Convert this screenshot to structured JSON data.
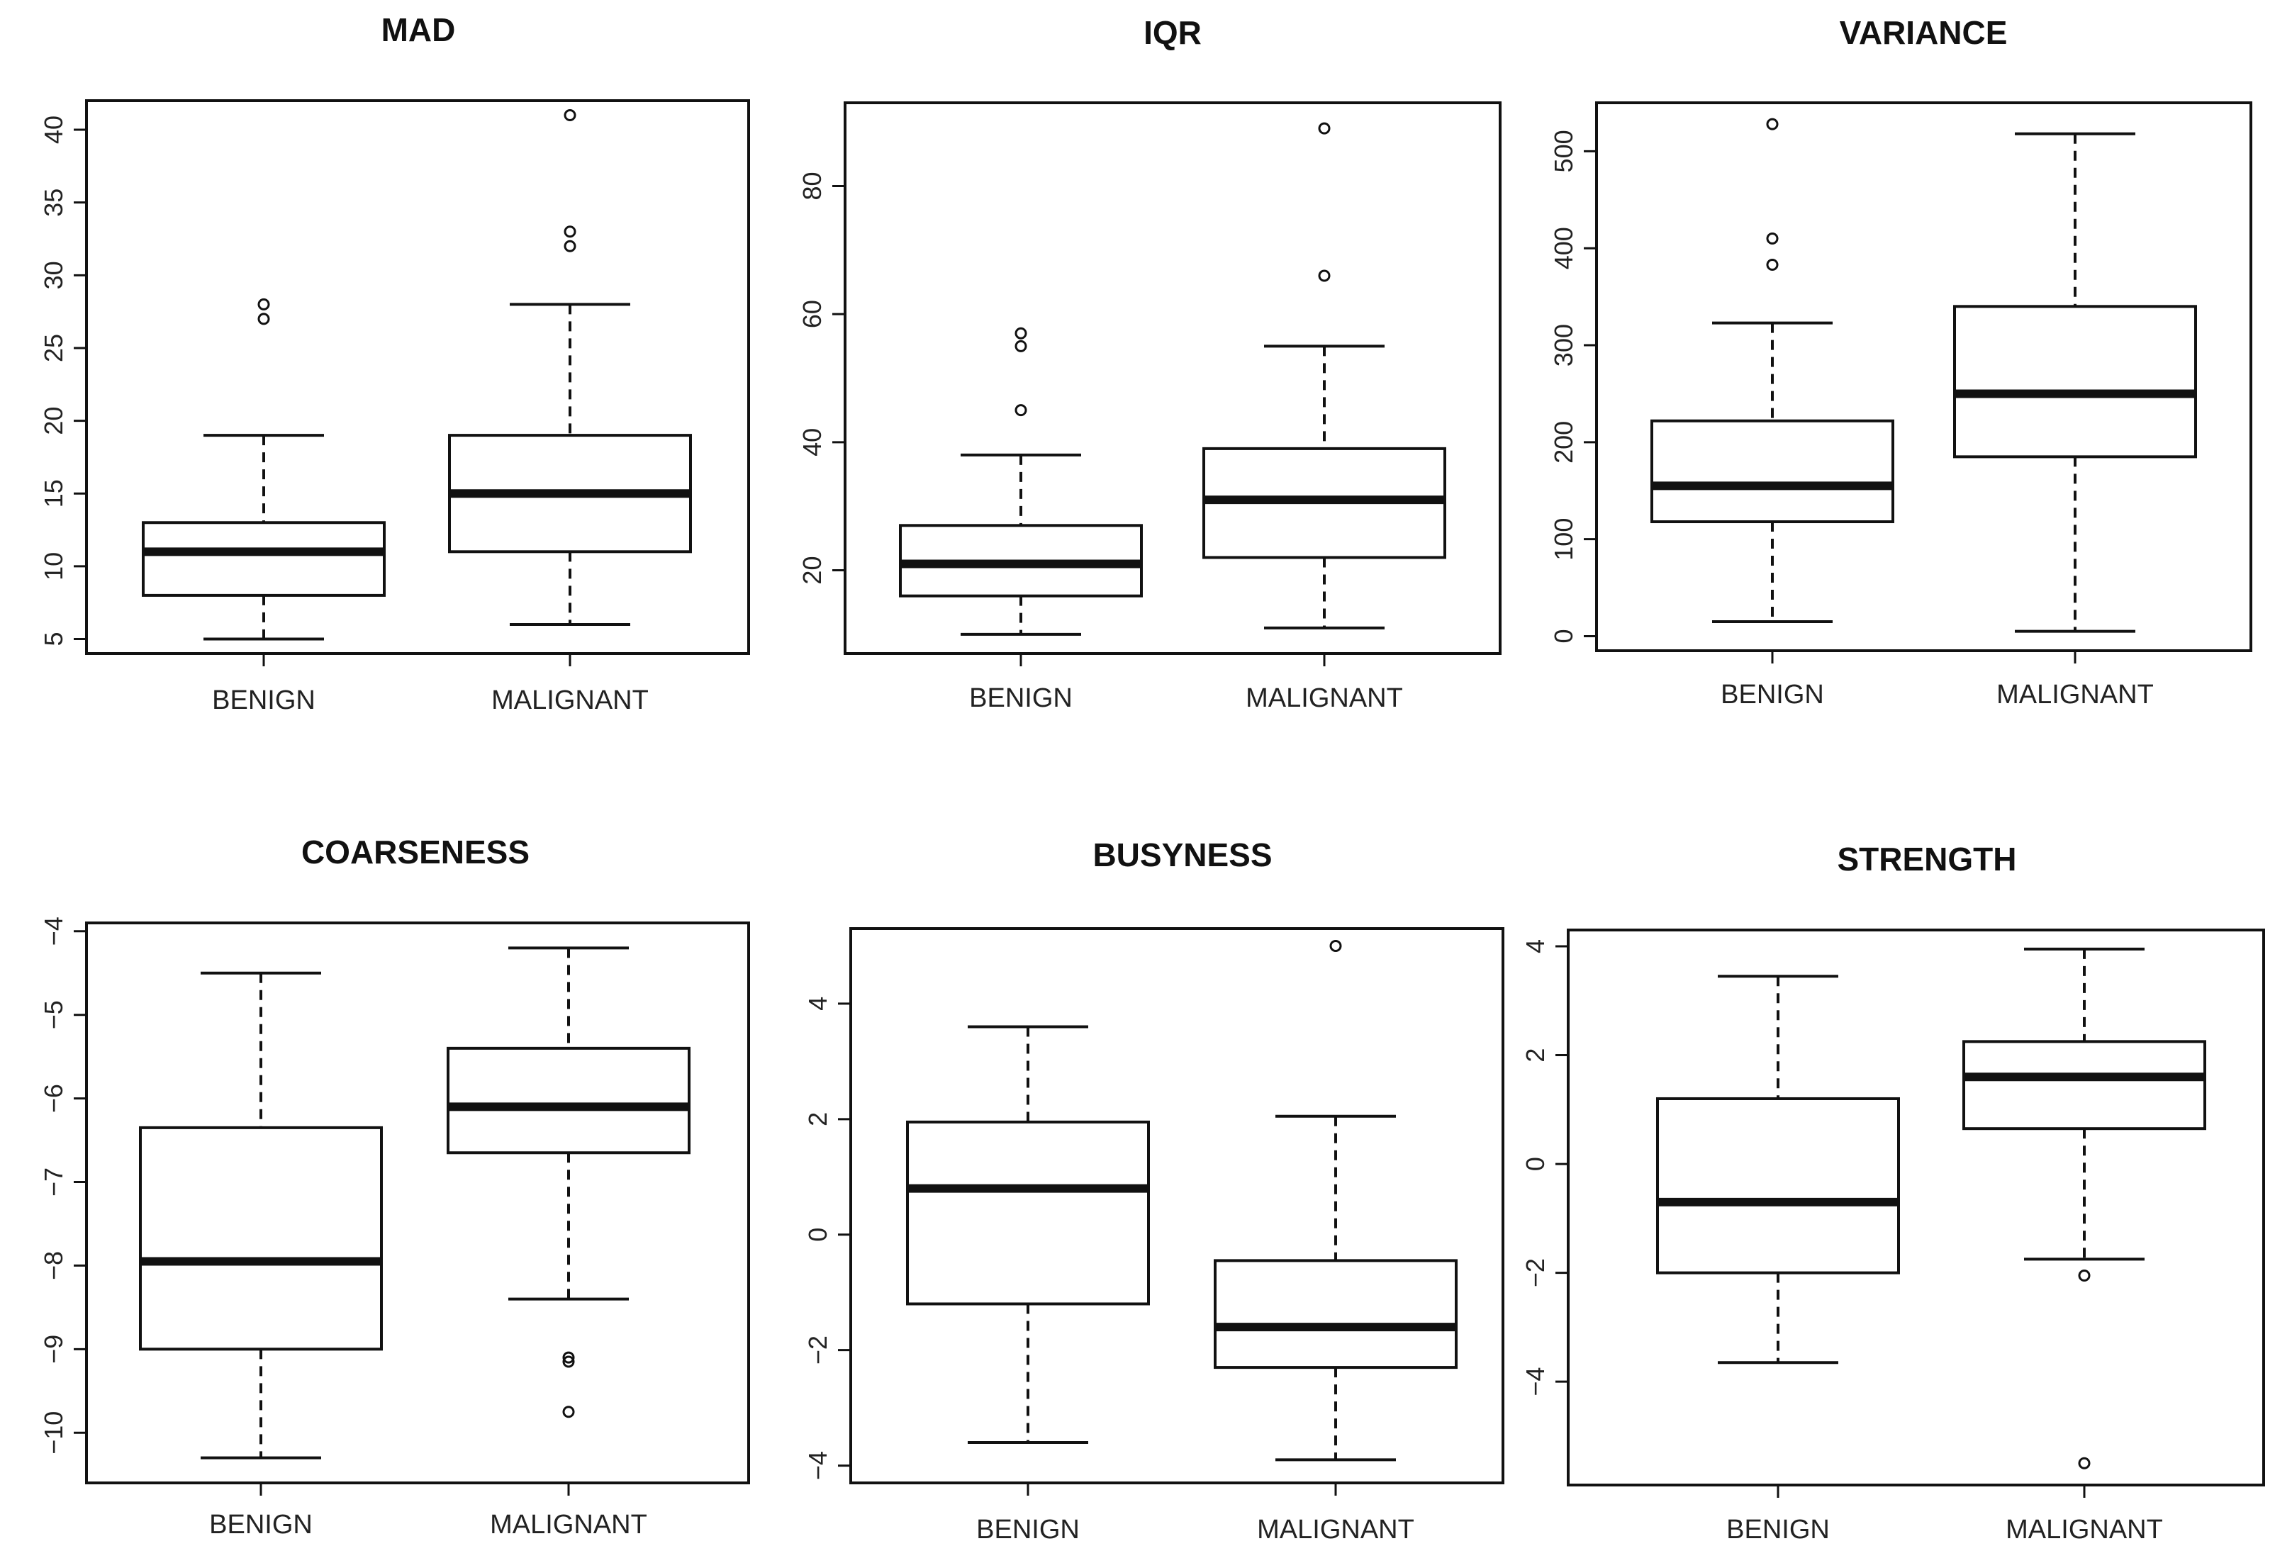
{
  "chart_data": [
    {
      "type": "box",
      "title": "MAD",
      "categories": [
        "BENIGN",
        "MALIGNANT"
      ],
      "ylim": [
        4,
        42
      ],
      "yticks": [
        5,
        10,
        15,
        20,
        25,
        30,
        35,
        40
      ],
      "ytick_labels": [
        "5",
        "10",
        "15",
        "20",
        "25",
        "30",
        "35",
        "40"
      ],
      "boxes": [
        {
          "category": "BENIGN",
          "whisker_low": 5,
          "q1": 8,
          "median": 11,
          "q3": 13,
          "whisker_high": 19,
          "outliers": [
            27,
            28
          ]
        },
        {
          "category": "MALIGNANT",
          "whisker_low": 6,
          "q1": 11,
          "median": 15,
          "q3": 19,
          "whisker_high": 28,
          "outliers": [
            32,
            33,
            41
          ]
        }
      ]
    },
    {
      "type": "box",
      "title": "IQR",
      "categories": [
        "BENIGN",
        "MALIGNANT"
      ],
      "ylim": [
        7,
        93
      ],
      "yticks": [
        20,
        40,
        60,
        80
      ],
      "ytick_labels": [
        "20",
        "40",
        "60",
        "80"
      ],
      "boxes": [
        {
          "category": "BENIGN",
          "whisker_low": 10,
          "q1": 16,
          "median": 21,
          "q3": 27,
          "whisker_high": 38,
          "outliers": [
            45,
            55,
            57
          ]
        },
        {
          "category": "MALIGNANT",
          "whisker_low": 11,
          "q1": 22,
          "median": 31,
          "q3": 39,
          "whisker_high": 55,
          "outliers": [
            66,
            89
          ]
        }
      ]
    },
    {
      "type": "box",
      "title": "VARIANCE",
      "categories": [
        "BENIGN",
        "MALIGNANT"
      ],
      "ylim": [
        -15,
        550
      ],
      "yticks": [
        0,
        100,
        200,
        300,
        400,
        500
      ],
      "ytick_labels": [
        "0",
        "100",
        "200",
        "300",
        "400",
        "500"
      ],
      "boxes": [
        {
          "category": "BENIGN",
          "whisker_low": 15,
          "q1": 118,
          "median": 155,
          "q3": 222,
          "whisker_high": 323,
          "outliers": [
            383,
            410,
            528
          ]
        },
        {
          "category": "MALIGNANT",
          "whisker_low": 5,
          "q1": 185,
          "median": 250,
          "q3": 340,
          "whisker_high": 518,
          "outliers": []
        }
      ]
    },
    {
      "type": "box",
      "title": "COARSENESS",
      "categories": [
        "BENIGN",
        "MALIGNANT"
      ],
      "ylim": [
        -10.6,
        -3.9
      ],
      "yticks": [
        -10,
        -9,
        -8,
        -7,
        -6,
        -5,
        -4
      ],
      "ytick_labels": [
        "−10",
        "−9",
        "−8",
        "−7",
        "−6",
        "−5",
        "−4"
      ],
      "boxes": [
        {
          "category": "BENIGN",
          "whisker_low": -10.3,
          "q1": -9.0,
          "median": -7.95,
          "q3": -6.35,
          "whisker_high": -4.5,
          "outliers": []
        },
        {
          "category": "MALIGNANT",
          "whisker_low": -8.4,
          "q1": -6.65,
          "median": -6.1,
          "q3": -5.4,
          "whisker_high": -4.2,
          "outliers": [
            -9.1,
            -9.15,
            -9.75
          ]
        }
      ]
    },
    {
      "type": "box",
      "title": "BUSYNESS",
      "categories": [
        "BENIGN",
        "MALIGNANT"
      ],
      "ylim": [
        -4.3,
        5.3
      ],
      "yticks": [
        -4,
        -2,
        0,
        2,
        4
      ],
      "ytick_labels": [
        "−4",
        "−2",
        "0",
        "2",
        "4"
      ],
      "boxes": [
        {
          "category": "BENIGN",
          "whisker_low": -3.6,
          "q1": -1.2,
          "median": 0.8,
          "q3": 1.95,
          "whisker_high": 3.6,
          "outliers": []
        },
        {
          "category": "MALIGNANT",
          "whisker_low": -3.9,
          "q1": -2.3,
          "median": -1.6,
          "q3": -0.45,
          "whisker_high": 2.05,
          "outliers": [
            5.0
          ]
        }
      ]
    },
    {
      "type": "box",
      "title": "STRENGTH",
      "categories": [
        "BENIGN",
        "MALIGNANT"
      ],
      "ylim": [
        -5.9,
        4.3
      ],
      "yticks": [
        -4,
        -2,
        0,
        2,
        4
      ],
      "ytick_labels": [
        "−4",
        "−2",
        "0",
        "2",
        "4"
      ],
      "boxes": [
        {
          "category": "BENIGN",
          "whisker_low": -3.65,
          "q1": -2.0,
          "median": -0.7,
          "q3": 1.2,
          "whisker_high": 3.45,
          "outliers": []
        },
        {
          "category": "MALIGNANT",
          "whisker_low": -1.75,
          "q1": 0.65,
          "median": 1.6,
          "q3": 2.25,
          "whisker_high": 3.95,
          "outliers": [
            -2.05,
            -5.5
          ]
        }
      ]
    }
  ]
}
